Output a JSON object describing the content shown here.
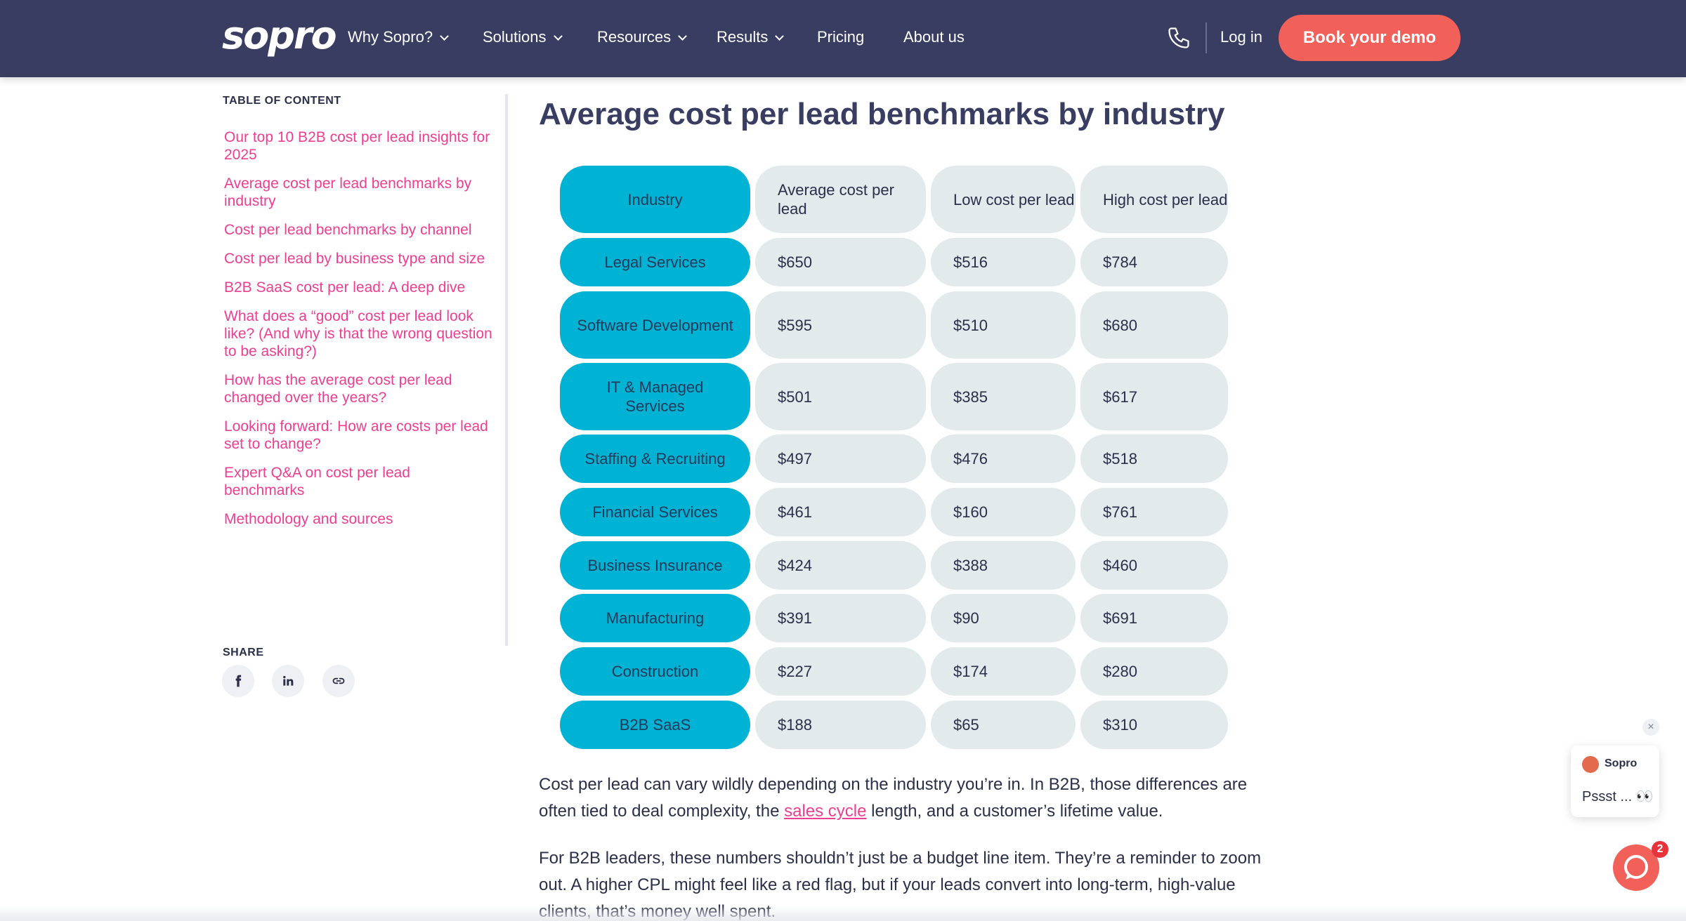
{
  "nav": {
    "logo": "sopro",
    "items": [
      {
        "label": "Why Sopro?",
        "dropdown": true
      },
      {
        "label": "Solutions",
        "dropdown": true
      },
      {
        "label": "Resources",
        "dropdown": true
      },
      {
        "label": "Results",
        "dropdown": true
      },
      {
        "label": "Pricing",
        "dropdown": false
      },
      {
        "label": "About us",
        "dropdown": false
      }
    ],
    "login": "Log in",
    "cta": "Book your demo"
  },
  "toc": {
    "title": "TABLE OF CONTENT",
    "items": [
      "Our top 10 B2B cost per lead insights for 2025",
      "Average cost per lead benchmarks by industry",
      "Cost per lead benchmarks by channel",
      "Cost per lead by business type and size",
      "B2B SaaS cost per lead: A deep dive",
      "What does a “good” cost per lead look like? (And why is that the wrong question to be asking?)",
      "How has the average cost per lead changed over the years?",
      "Looking forward: How are costs per lead set to change?",
      "Expert Q&A on cost per lead benchmarks",
      "Methodology and sources"
    ],
    "share_title": "SHARE",
    "share_icons": [
      "facebook-icon",
      "linkedin-icon",
      "link-icon"
    ]
  },
  "main": {
    "heading": "Average cost per lead benchmarks by industry",
    "table": {
      "headers": [
        "Industry",
        "Average cost per lead",
        "Low cost per lead",
        "High cost per lead"
      ],
      "rows": [
        [
          "Legal Services",
          "$650",
          "$516",
          "$784"
        ],
        [
          "Software Development",
          "$595",
          "$510",
          "$680"
        ],
        [
          "IT & Managed Services",
          "$501",
          "$385",
          "$617"
        ],
        [
          "Staffing & Recruiting",
          "$497",
          "$476",
          "$518"
        ],
        [
          "Financial Services",
          "$461",
          "$160",
          "$761"
        ],
        [
          "Business Insurance",
          "$424",
          "$388",
          "$460"
        ],
        [
          "Manufacturing",
          "$391",
          "$90",
          "$691"
        ],
        [
          "Construction",
          "$227",
          "$174",
          "$280"
        ],
        [
          "B2B SaaS",
          "$188",
          "$65",
          "$310"
        ]
      ]
    },
    "para1_before": "Cost per lead can vary wildly depending on the industry you’re in. In B2B, those differences are often tied to deal complexity, the ",
    "para1_link": "sales cycle",
    "para1_after": " length, and a customer’s lifetime value.",
    "para2": "For B2B leaders, these numbers shouldn’t just be a budget line item. They’re a reminder to zoom out. A higher CPL might feel like a red flag, but if your leads convert into long-term, high-value clients, that’s money well spent."
  },
  "chat": {
    "close": "×",
    "sender": "Sopro",
    "message": "Pssst ... 👀",
    "badge": "2"
  },
  "colors": {
    "nav_bg": "#383d61",
    "accent": "#f2605a",
    "link_pink": "#ee3e90",
    "industry_cell": "#00b2d3",
    "value_cell": "#e3eaec"
  }
}
